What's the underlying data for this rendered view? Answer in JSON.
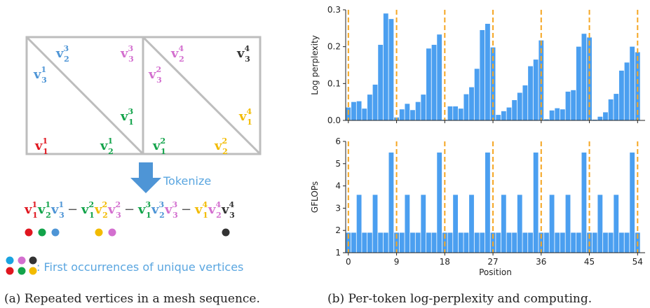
{
  "colors": {
    "red": "#e0161f",
    "green": "#12a34a",
    "blue": "#4e95d6",
    "pink": "#d36fcf",
    "yellow": "#f2bb00",
    "dark": "#333333",
    "bar": "#4b9ff0",
    "divider": "#f5a623",
    "edge": "#bdbdbd",
    "arrow": "#4e95d6",
    "note": "#5aa6e0"
  },
  "left_panel": {
    "vertex_labels": [
      {
        "v": "v",
        "sub": "3",
        "sup": "1",
        "color": "blue"
      },
      {
        "v": "v",
        "sub": "2",
        "sup": "3",
        "color": "blue"
      },
      {
        "v": "v",
        "sub": "3",
        "sup": "3",
        "color": "pink"
      },
      {
        "v": "v",
        "sub": "1",
        "sup": "3",
        "color": "green"
      },
      {
        "v": "v",
        "sub": "1",
        "sup": "1",
        "color": "red"
      },
      {
        "v": "v",
        "sub": "2",
        "sup": "1",
        "color": "green"
      },
      {
        "v": "v",
        "sub": "2",
        "sup": "4",
        "color": "pink"
      },
      {
        "v": "v",
        "sub": "3",
        "sup": "4",
        "color": "dark"
      },
      {
        "v": "v",
        "sub": "3",
        "sup": "2",
        "color": "pink"
      },
      {
        "v": "v",
        "sub": "1",
        "sup": "4",
        "color": "yellow"
      },
      {
        "v": "v",
        "sub": "1",
        "sup": "2",
        "color": "green"
      },
      {
        "v": "v",
        "sub": "2",
        "sup": "2",
        "color": "yellow"
      }
    ],
    "tokenize_label": "Tokenize",
    "sequence": [
      {
        "sub": "1",
        "sup": "1",
        "color": "red"
      },
      {
        "sub": "2",
        "sup": "1",
        "color": "green"
      },
      {
        "sub": "3",
        "sup": "1",
        "color": "blue"
      },
      {
        "sep": "−"
      },
      {
        "sub": "1",
        "sup": "2",
        "color": "green"
      },
      {
        "sub": "2",
        "sup": "2",
        "color": "yellow"
      },
      {
        "sub": "3",
        "sup": "2",
        "color": "pink"
      },
      {
        "sep": "−"
      },
      {
        "sub": "1",
        "sup": "3",
        "color": "green"
      },
      {
        "sub": "2",
        "sup": "3",
        "color": "blue"
      },
      {
        "sub": "3",
        "sup": "3",
        "color": "pink"
      },
      {
        "sep": "−"
      },
      {
        "sub": "1",
        "sup": "4",
        "color": "yellow"
      },
      {
        "sub": "2",
        "sup": "4",
        "color": "pink"
      },
      {
        "sub": "3",
        "sup": "4",
        "color": "dark"
      }
    ],
    "legend_text": ": First occurrences of unique vertices",
    "caption": "(a) Repeated vertices in a mesh sequence."
  },
  "chart_data": [
    {
      "type": "bar",
      "ylabel": "Log perplexity",
      "xlabel": "",
      "ylim": [
        0,
        0.3
      ],
      "yticks": [
        "0.0",
        "0.1",
        "0.2",
        "0.3"
      ],
      "x": [
        0,
        1,
        2,
        3,
        4,
        5,
        6,
        7,
        8,
        9,
        10,
        11,
        12,
        13,
        14,
        15,
        16,
        17,
        18,
        19,
        20,
        21,
        22,
        23,
        24,
        25,
        26,
        27,
        28,
        29,
        30,
        31,
        32,
        33,
        34,
        35,
        36,
        37,
        38,
        39,
        40,
        41,
        42,
        43,
        44,
        45,
        46,
        47,
        48,
        49,
        50,
        51,
        52,
        53,
        54
      ],
      "values": [
        0.035,
        0.05,
        0.052,
        0.032,
        0.07,
        0.097,
        0.205,
        0.29,
        0.275,
        0.008,
        0.03,
        0.045,
        0.028,
        0.05,
        0.07,
        0.195,
        0.205,
        0.233,
        0.002,
        0.038,
        0.038,
        0.032,
        0.071,
        0.09,
        0.14,
        0.245,
        0.262,
        0.198,
        0.015,
        0.025,
        0.035,
        0.055,
        0.075,
        0.095,
        0.147,
        0.165,
        0.217,
        0.003,
        0.027,
        0.033,
        0.03,
        0.078,
        0.082,
        0.2,
        0.235,
        0.225,
        0.002,
        0.01,
        0.022,
        0.057,
        0.072,
        0.135,
        0.157,
        0.2,
        0.185
      ],
      "dividers": [
        0,
        9,
        18,
        27,
        36,
        45,
        54
      ]
    },
    {
      "type": "bar",
      "ylabel": "GFLOPs",
      "xlabel": "Position",
      "ylim": [
        1,
        6
      ],
      "yticks": [
        "1",
        "2",
        "3",
        "4",
        "5",
        "6"
      ],
      "xticks": [
        "0",
        "9",
        "18",
        "27",
        "36",
        "45",
        "54"
      ],
      "x": [
        0,
        1,
        2,
        3,
        4,
        5,
        6,
        7,
        8,
        9,
        10,
        11,
        12,
        13,
        14,
        15,
        16,
        17,
        18,
        19,
        20,
        21,
        22,
        23,
        24,
        25,
        26,
        27,
        28,
        29,
        30,
        31,
        32,
        33,
        34,
        35,
        36,
        37,
        38,
        39,
        40,
        41,
        42,
        43,
        44,
        45,
        46,
        47,
        48,
        49,
        50,
        51,
        52,
        53,
        54
      ],
      "values": [
        1.9,
        1.9,
        3.6,
        1.9,
        1.9,
        3.6,
        1.9,
        1.9,
        5.5,
        1.9,
        1.9,
        3.6,
        1.9,
        1.9,
        3.6,
        1.9,
        1.9,
        5.5,
        1.9,
        1.9,
        3.6,
        1.9,
        1.9,
        3.6,
        1.9,
        1.9,
        5.5,
        1.9,
        1.9,
        3.6,
        1.9,
        1.9,
        3.6,
        1.9,
        1.9,
        5.5,
        1.9,
        1.9,
        3.6,
        1.9,
        1.9,
        3.6,
        1.9,
        1.9,
        5.5,
        1.9,
        1.9,
        3.6,
        1.9,
        1.9,
        3.6,
        1.9,
        1.9,
        5.5,
        1.9
      ],
      "dividers": [
        0,
        9,
        18,
        27,
        36,
        45,
        54
      ]
    }
  ],
  "right_caption": "(b) Per-token log-perplexity and computing."
}
